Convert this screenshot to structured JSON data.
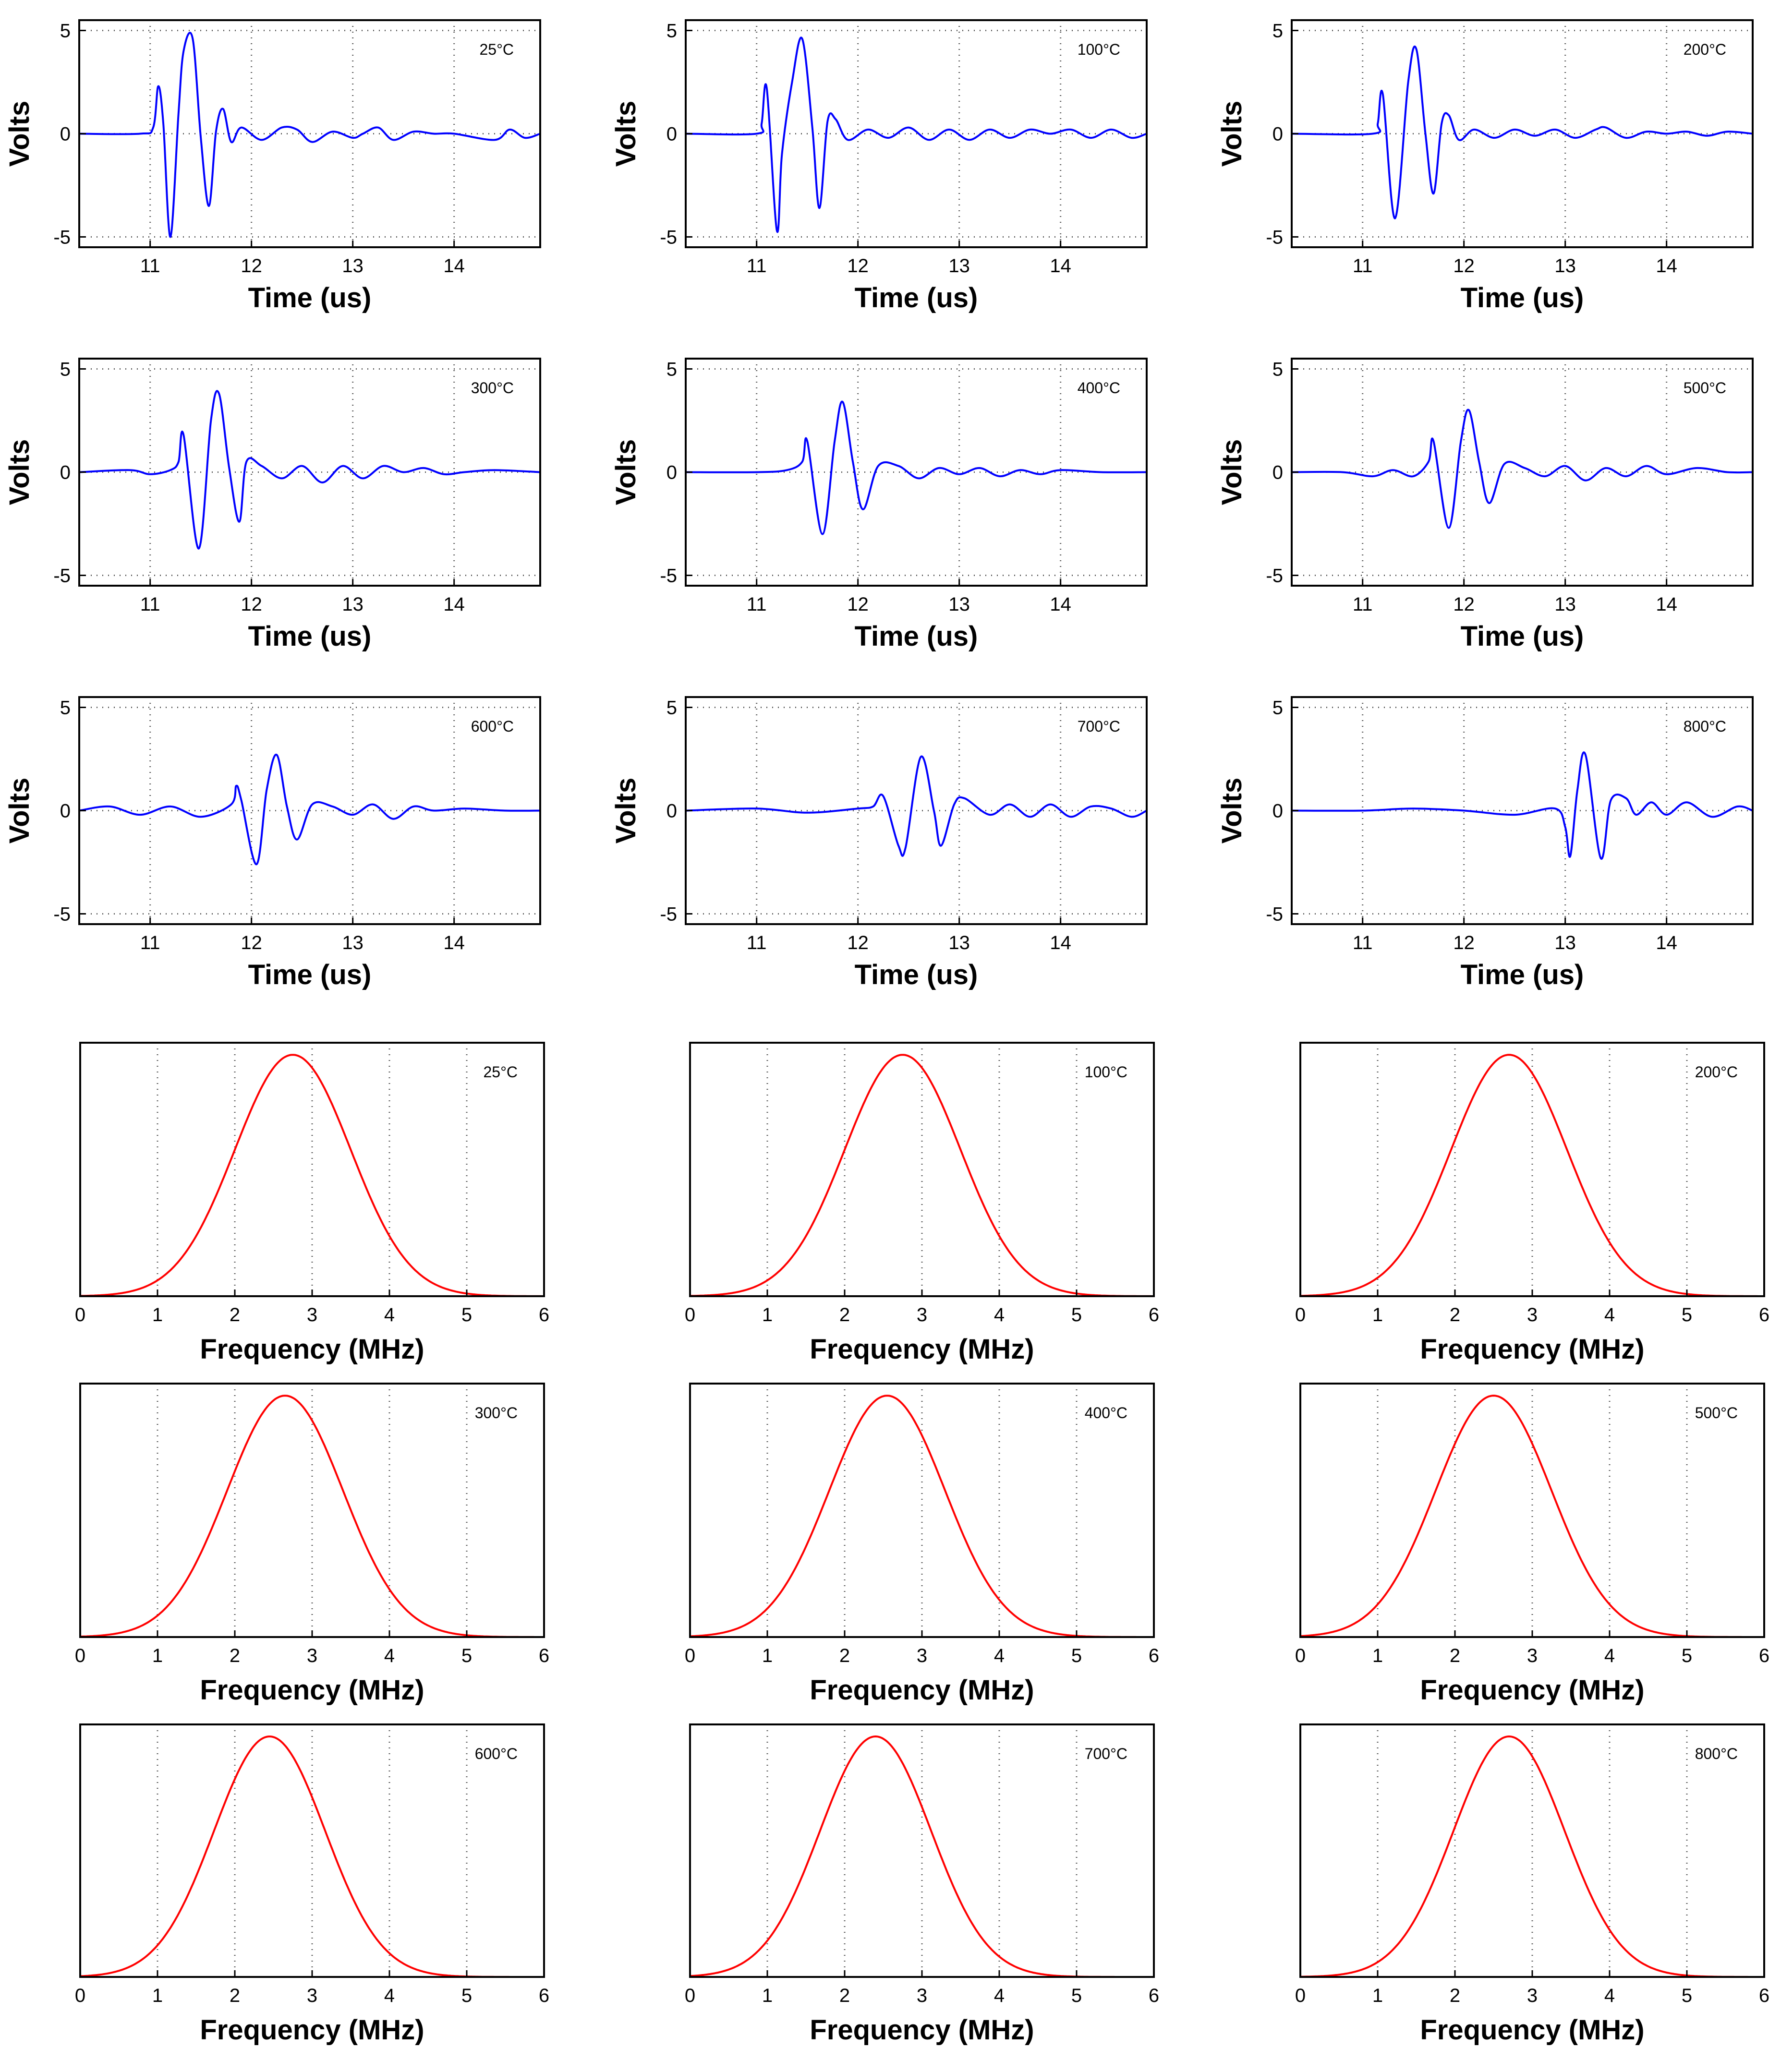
{
  "figure": {
    "waveform_color": "#0000ff",
    "spectrum_color": "#ff0000",
    "frame_color": "#000000",
    "grid_color": "#555555"
  },
  "chart_data": [
    {
      "type": "line",
      "panel": "waveform",
      "label": "25°C",
      "xlabel": "Time (us)",
      "ylabel": "Volts",
      "xlim": [
        10.3,
        14.85
      ],
      "ylim": [
        -5.5,
        5.5
      ],
      "xticks": [
        11,
        12,
        13,
        14
      ],
      "yticks": [
        -5,
        0,
        5
      ],
      "grid": true,
      "series": [
        {
          "name": "25°C",
          "x": [
            10.3,
            10.9,
            11.03,
            11.08,
            11.13,
            11.2,
            11.28,
            11.33,
            11.42,
            11.5,
            11.58,
            11.65,
            11.72,
            11.8,
            11.9,
            12.1,
            12.3,
            12.45,
            12.6,
            12.8,
            13.0,
            13.1,
            13.25,
            13.4,
            13.6,
            13.8,
            14.0,
            14.4,
            14.55,
            14.7,
            14.85
          ],
          "y": [
            0,
            0,
            0.3,
            2.3,
            0.5,
            -5.0,
            1.0,
            4.0,
            4.6,
            -0.2,
            -3.5,
            0.1,
            1.2,
            -0.4,
            0.3,
            -0.3,
            0.3,
            0.2,
            -0.4,
            0.1,
            -0.2,
            0.0,
            0.3,
            -0.3,
            0.1,
            0.0,
            0.0,
            -0.3,
            0.2,
            -0.2,
            0.0
          ]
        }
      ]
    },
    {
      "type": "line",
      "panel": "waveform",
      "label": "100°C",
      "xlabel": "Time (us)",
      "ylabel": "Volts",
      "xlim": [
        10.3,
        14.85
      ],
      "ylim": [
        -5.5,
        5.5
      ],
      "xticks": [
        11,
        12,
        13,
        14
      ],
      "yticks": [
        -5,
        0,
        5
      ],
      "grid": true,
      "series": [
        {
          "name": "100°C",
          "x": [
            10.3,
            11.0,
            11.05,
            11.1,
            11.2,
            11.25,
            11.35,
            11.45,
            11.55,
            11.62,
            11.7,
            11.78,
            11.9,
            12.1,
            12.3,
            12.5,
            12.7,
            12.9,
            13.1,
            13.3,
            13.5,
            13.7,
            13.9,
            14.1,
            14.3,
            14.5,
            14.7,
            14.85
          ],
          "y": [
            0,
            0,
            0.5,
            2.2,
            -4.7,
            -1.0,
            2.5,
            4.6,
            0.3,
            -3.6,
            0.6,
            0.7,
            -0.3,
            0.2,
            -0.2,
            0.3,
            -0.3,
            0.2,
            -0.3,
            0.2,
            -0.2,
            0.2,
            0.0,
            0.2,
            -0.2,
            0.2,
            -0.2,
            0.0
          ]
        }
      ]
    },
    {
      "type": "line",
      "panel": "waveform",
      "label": "200°C",
      "xlabel": "Time (us)",
      "ylabel": "Volts",
      "xlim": [
        10.3,
        14.85
      ],
      "ylim": [
        -5.5,
        5.5
      ],
      "xticks": [
        11,
        12,
        13,
        14
      ],
      "yticks": [
        -5,
        0,
        5
      ],
      "grid": true,
      "series": [
        {
          "name": "200°C",
          "x": [
            10.3,
            11.1,
            11.15,
            11.2,
            11.32,
            11.45,
            11.53,
            11.62,
            11.7,
            11.78,
            11.85,
            11.95,
            12.1,
            12.3,
            12.5,
            12.7,
            12.9,
            13.1,
            13.3,
            13.4,
            13.6,
            13.8,
            14.0,
            14.2,
            14.4,
            14.6,
            14.85
          ],
          "y": [
            0,
            0,
            0.5,
            1.9,
            -4.1,
            2.5,
            4.1,
            0.0,
            -2.9,
            0.5,
            0.9,
            -0.3,
            0.2,
            -0.2,
            0.2,
            -0.1,
            0.2,
            -0.2,
            0.2,
            0.3,
            -0.2,
            0.1,
            0.0,
            0.1,
            -0.1,
            0.1,
            0.0
          ]
        }
      ]
    },
    {
      "type": "line",
      "panel": "waveform",
      "label": "300°C",
      "xlabel": "Time (us)",
      "ylabel": "Volts",
      "xlim": [
        10.3,
        14.85
      ],
      "ylim": [
        -5.5,
        5.5
      ],
      "xticks": [
        11,
        12,
        13,
        14
      ],
      "yticks": [
        -5,
        0,
        5
      ],
      "grid": true,
      "series": [
        {
          "name": "300°C",
          "x": [
            10.3,
            10.8,
            11.0,
            11.2,
            11.28,
            11.33,
            11.48,
            11.6,
            11.68,
            11.78,
            11.88,
            11.95,
            12.1,
            12.3,
            12.5,
            12.7,
            12.9,
            13.1,
            13.3,
            13.5,
            13.7,
            13.9,
            14.1,
            14.4,
            14.85
          ],
          "y": [
            0,
            0.1,
            -0.1,
            0.1,
            0.5,
            1.8,
            -3.7,
            2.5,
            3.8,
            0.2,
            -2.4,
            0.5,
            0.3,
            -0.3,
            0.3,
            -0.5,
            0.3,
            -0.3,
            0.3,
            0.0,
            0.2,
            -0.1,
            0.0,
            0.1,
            0.0
          ]
        }
      ]
    },
    {
      "type": "line",
      "panel": "waveform",
      "label": "400°C",
      "xlabel": "Time (us)",
      "ylabel": "Volts",
      "xlim": [
        10.3,
        14.85
      ],
      "ylim": [
        -5.5,
        5.5
      ],
      "xticks": [
        11,
        12,
        13,
        14
      ],
      "yticks": [
        -5,
        0,
        5
      ],
      "grid": true,
      "series": [
        {
          "name": "400°C",
          "x": [
            10.3,
            11.0,
            11.3,
            11.45,
            11.5,
            11.65,
            11.77,
            11.85,
            11.95,
            12.05,
            12.2,
            12.4,
            12.6,
            12.8,
            13.0,
            13.2,
            13.4,
            13.6,
            13.8,
            14.0,
            14.4,
            14.85
          ],
          "y": [
            0,
            0.0,
            0.1,
            0.5,
            1.5,
            -3.0,
            1.5,
            3.4,
            0.5,
            -1.8,
            0.3,
            0.3,
            -0.3,
            0.2,
            -0.1,
            0.2,
            -0.2,
            0.1,
            -0.1,
            0.1,
            0.0,
            0.0
          ]
        }
      ]
    },
    {
      "type": "line",
      "panel": "waveform",
      "label": "500°C",
      "xlabel": "Time (us)",
      "ylabel": "Volts",
      "xlim": [
        10.3,
        14.85
      ],
      "ylim": [
        -5.5,
        5.5
      ],
      "xticks": [
        11,
        12,
        13,
        14
      ],
      "yticks": [
        -5,
        0,
        5
      ],
      "grid": true,
      "series": [
        {
          "name": "500°C",
          "x": [
            10.3,
            10.8,
            11.1,
            11.3,
            11.5,
            11.65,
            11.7,
            11.85,
            11.97,
            12.05,
            12.15,
            12.25,
            12.4,
            12.6,
            12.8,
            13.0,
            13.2,
            13.4,
            13.6,
            13.8,
            14.0,
            14.3,
            14.6,
            14.85
          ],
          "y": [
            0,
            0.0,
            -0.2,
            0.1,
            -0.2,
            0.5,
            1.5,
            -2.7,
            1.5,
            3.0,
            0.5,
            -1.5,
            0.4,
            0.2,
            -0.2,
            0.3,
            -0.4,
            0.2,
            -0.2,
            0.3,
            -0.1,
            0.2,
            0.0,
            0.0
          ]
        }
      ]
    },
    {
      "type": "line",
      "panel": "waveform",
      "label": "600°C",
      "xlabel": "Time (us)",
      "ylabel": "Volts",
      "xlim": [
        10.3,
        14.85
      ],
      "ylim": [
        -5.5,
        5.5
      ],
      "xticks": [
        11,
        12,
        13,
        14
      ],
      "yticks": [
        -5,
        0,
        5
      ],
      "grid": true,
      "series": [
        {
          "name": "600°C",
          "x": [
            10.3,
            10.6,
            10.9,
            11.2,
            11.5,
            11.8,
            11.85,
            11.9,
            12.05,
            12.15,
            12.25,
            12.35,
            12.45,
            12.6,
            12.8,
            13.0,
            13.2,
            13.4,
            13.6,
            13.8,
            14.1,
            14.5,
            14.85
          ],
          "y": [
            0,
            0.2,
            -0.2,
            0.2,
            -0.3,
            0.3,
            1.2,
            0.5,
            -2.6,
            1.0,
            2.7,
            0.2,
            -1.4,
            0.3,
            0.2,
            -0.2,
            0.3,
            -0.4,
            0.2,
            0.0,
            0.1,
            0.0,
            0.0
          ]
        }
      ]
    },
    {
      "type": "line",
      "panel": "waveform",
      "label": "700°C",
      "xlabel": "Time (us)",
      "ylabel": "Volts",
      "xlim": [
        10.3,
        14.85
      ],
      "ylim": [
        -5.5,
        5.5
      ],
      "xticks": [
        11,
        12,
        13,
        14
      ],
      "yticks": [
        -5,
        0,
        5
      ],
      "grid": true,
      "series": [
        {
          "name": "700°C",
          "x": [
            10.3,
            11.0,
            11.5,
            12.0,
            12.15,
            12.25,
            12.4,
            12.47,
            12.62,
            12.75,
            12.82,
            12.95,
            13.05,
            13.3,
            13.5,
            13.7,
            13.9,
            14.1,
            14.3,
            14.5,
            14.7,
            14.85
          ],
          "y": [
            0,
            0.1,
            -0.1,
            0.1,
            0.2,
            0.7,
            -1.7,
            -1.8,
            2.6,
            0.0,
            -1.7,
            0.3,
            0.6,
            -0.2,
            0.3,
            -0.3,
            0.3,
            -0.3,
            0.2,
            0.1,
            -0.3,
            0.0
          ]
        }
      ]
    },
    {
      "type": "line",
      "panel": "waveform",
      "label": "800°C",
      "xlabel": "Time (us)",
      "ylabel": "Volts",
      "xlim": [
        10.3,
        14.85
      ],
      "ylim": [
        -5.5,
        5.5
      ],
      "xticks": [
        11,
        12,
        13,
        14
      ],
      "yticks": [
        -5,
        0,
        5
      ],
      "grid": true,
      "series": [
        {
          "name": "800°C",
          "x": [
            10.3,
            11.0,
            11.5,
            12.0,
            12.5,
            12.9,
            13.0,
            13.05,
            13.12,
            13.2,
            13.35,
            13.45,
            13.6,
            13.7,
            13.85,
            14.0,
            14.2,
            14.45,
            14.7,
            14.85
          ],
          "y": [
            0,
            0.0,
            0.1,
            0.0,
            -0.2,
            0.1,
            -0.8,
            -2.2,
            1.0,
            2.7,
            -2.3,
            0.5,
            0.6,
            -0.2,
            0.4,
            -0.2,
            0.4,
            -0.3,
            0.2,
            0.0
          ]
        }
      ]
    },
    {
      "type": "line",
      "panel": "spectrum",
      "label": "25°C",
      "xlabel": "Frequency (MHz)",
      "xlim": [
        0,
        6
      ],
      "ylim": [
        0,
        1.05
      ],
      "xticks": [
        0,
        1,
        2,
        3,
        4,
        5,
        6
      ],
      "grid": true,
      "series": [
        {
          "name": "25°C",
          "peak_freq": 2.75,
          "sigma": 0.75
        }
      ]
    },
    {
      "type": "line",
      "panel": "spectrum",
      "label": "100°C",
      "xlabel": "Frequency (MHz)",
      "xlim": [
        0,
        6
      ],
      "ylim": [
        0,
        1.05
      ],
      "xticks": [
        0,
        1,
        2,
        3,
        4,
        5,
        6
      ],
      "grid": true,
      "series": [
        {
          "name": "100°C",
          "peak_freq": 2.75,
          "sigma": 0.75
        }
      ]
    },
    {
      "type": "line",
      "panel": "spectrum",
      "label": "200°C",
      "xlabel": "Frequency (MHz)",
      "xlim": [
        0,
        6
      ],
      "ylim": [
        0,
        1.05
      ],
      "xticks": [
        0,
        1,
        2,
        3,
        4,
        5,
        6
      ],
      "grid": true,
      "series": [
        {
          "name": "200°C",
          "peak_freq": 2.7,
          "sigma": 0.75
        }
      ]
    },
    {
      "type": "line",
      "panel": "spectrum",
      "label": "300°C",
      "xlabel": "Frequency (MHz)",
      "xlim": [
        0,
        6
      ],
      "ylim": [
        0,
        1.05
      ],
      "xticks": [
        0,
        1,
        2,
        3,
        4,
        5,
        6
      ],
      "grid": true,
      "series": [
        {
          "name": "300°C",
          "peak_freq": 2.65,
          "sigma": 0.75
        }
      ]
    },
    {
      "type": "line",
      "panel": "spectrum",
      "label": "400°C",
      "xlabel": "Frequency (MHz)",
      "xlim": [
        0,
        6
      ],
      "ylim": [
        0,
        1.05
      ],
      "xticks": [
        0,
        1,
        2,
        3,
        4,
        5,
        6
      ],
      "grid": true,
      "series": [
        {
          "name": "400°C",
          "peak_freq": 2.55,
          "sigma": 0.75
        }
      ]
    },
    {
      "type": "line",
      "panel": "spectrum",
      "label": "500°C",
      "xlabel": "Frequency (MHz)",
      "xlim": [
        0,
        6
      ],
      "ylim": [
        0,
        1.05
      ],
      "xticks": [
        0,
        1,
        2,
        3,
        4,
        5,
        6
      ],
      "grid": true,
      "series": [
        {
          "name": "500°C",
          "peak_freq": 2.5,
          "sigma": 0.75
        }
      ]
    },
    {
      "type": "line",
      "panel": "spectrum",
      "label": "600°C",
      "xlabel": "Frequency (MHz)",
      "xlim": [
        0,
        6
      ],
      "ylim": [
        0,
        1.05
      ],
      "xticks": [
        0,
        1,
        2,
        3,
        4,
        5,
        6
      ],
      "grid": true,
      "series": [
        {
          "name": "600°C",
          "peak_freq": 2.45,
          "sigma": 0.72
        }
      ]
    },
    {
      "type": "line",
      "panel": "spectrum",
      "label": "700°C",
      "xlabel": "Frequency (MHz)",
      "xlim": [
        0,
        6
      ],
      "ylim": [
        0,
        1.05
      ],
      "xticks": [
        0,
        1,
        2,
        3,
        4,
        5,
        6
      ],
      "grid": true,
      "series": [
        {
          "name": "700°C",
          "peak_freq": 2.4,
          "sigma": 0.72
        }
      ]
    },
    {
      "type": "line",
      "panel": "spectrum",
      "label": "800°C",
      "xlabel": "Frequency (MHz)",
      "xlim": [
        0,
        6
      ],
      "ylim": [
        0,
        1.05
      ],
      "xticks": [
        0,
        1,
        2,
        3,
        4,
        5,
        6
      ],
      "grid": true,
      "series": [
        {
          "name": "800°C",
          "peak_freq": 2.7,
          "sigma": 0.72
        }
      ]
    }
  ]
}
